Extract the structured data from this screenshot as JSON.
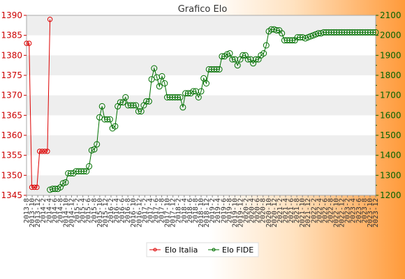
{
  "colors": {
    "italia": "#dd0000",
    "fide": "#007000",
    "band": "#eeeeee",
    "plot_bg": "#ffffff",
    "frame": "#aaaaaa",
    "title": "#333333",
    "left_ticks": "#cc0000",
    "right_ticks": "#006400"
  },
  "chart_data": {
    "type": "line",
    "title": "Grafico Elo",
    "grid": true,
    "legend_position": "bottom",
    "left_axis": {
      "series": "Elo Italia",
      "range": [
        1345,
        1390
      ],
      "ticks": [
        1345,
        1350,
        1355,
        1360,
        1365,
        1370,
        1375,
        1380,
        1385,
        1390
      ]
    },
    "right_axis": {
      "series": "Elo FIDE",
      "range": [
        1200,
        2100
      ],
      "ticks": [
        1200,
        1300,
        1400,
        1500,
        1600,
        1700,
        1800,
        1900,
        2000,
        2100
      ]
    },
    "x_tick_labels": [
      "2013-8",
      "2013-10",
      "2013-12",
      "2014-2",
      "2014-4",
      "2014-6",
      "2014-8",
      "2014-10",
      "2014-12",
      "2015-2",
      "2015-4",
      "2015-6",
      "2015-8",
      "2015-10",
      "2015-12",
      "2016-2",
      "2016-4",
      "2016-6",
      "2016-8",
      "2016-10",
      "2016-12",
      "2017-2",
      "2017-4",
      "2017-6",
      "2017-8",
      "2017-10",
      "2017-12",
      "2018-2",
      "2018-4",
      "2018-6",
      "2018-8",
      "2018-10",
      "2018-12",
      "2019-2",
      "2019-4",
      "2019-6",
      "2019-8",
      "2019-10",
      "2019-12",
      "2020-2",
      "2020-4",
      "2020-6",
      "2020-8",
      "2020-10",
      "2020-12",
      "2021-2",
      "2021-4",
      "2021-6",
      "2021-8",
      "2021-10",
      "2021-12",
      "2022-2",
      "2022-4",
      "2022-6",
      "2022-8",
      "2022-10",
      "2022-12",
      "2023-2",
      "2023-4",
      "2023-6",
      "2023-8",
      "2023-10",
      "2023-12"
    ],
    "series": [
      {
        "name": "Elo Italia",
        "axis": "left",
        "x": [
          0,
          1,
          2,
          3,
          4,
          5,
          6,
          7,
          8,
          9,
          10
        ],
        "values": [
          1383,
          1383,
          1347,
          1347,
          1347,
          1356,
          1356,
          1356,
          1356,
          1389,
          null
        ]
      },
      {
        "name": "Elo FIDE",
        "axis": "right",
        "x": [
          9,
          10,
          11,
          12,
          13,
          14,
          15,
          16,
          17,
          18,
          19,
          20,
          21,
          22,
          23,
          24,
          25,
          26,
          27,
          28,
          29,
          30,
          31,
          32,
          33,
          34,
          35,
          36,
          37,
          38,
          39,
          40,
          41,
          42,
          43,
          44,
          45,
          46,
          47,
          48,
          49,
          50,
          51,
          52,
          53,
          54,
          55,
          56,
          57,
          58,
          59,
          60,
          61,
          62,
          63,
          64,
          65,
          66,
          67,
          68,
          69,
          70,
          71,
          72,
          73,
          74,
          75,
          76,
          77,
          78,
          79,
          80,
          81,
          82,
          83,
          84,
          85,
          86,
          87,
          88,
          89,
          90,
          91,
          92,
          93,
          94,
          95,
          96,
          97,
          98,
          99,
          100,
          101,
          102,
          103,
          104,
          105,
          106,
          107,
          108,
          109,
          110,
          111,
          112,
          113,
          114,
          115,
          116,
          117,
          118,
          119,
          120,
          121,
          122,
          123,
          124,
          125,
          126,
          127,
          128,
          129,
          130,
          131,
          132,
          133,
          134
        ],
        "values": [
          1228,
          1232,
          1232,
          1232,
          1240,
          1260,
          1265,
          1310,
          1310,
          1310,
          1320,
          1320,
          1320,
          1320,
          1320,
          1345,
          1425,
          1430,
          1455,
          1590,
          1645,
          1580,
          1580,
          1580,
          1535,
          1545,
          1645,
          1665,
          1665,
          1690,
          1650,
          1650,
          1650,
          1650,
          1620,
          1620,
          1650,
          1670,
          1670,
          1780,
          1835,
          1790,
          1745,
          1795,
          1760,
          1690,
          1690,
          1690,
          1690,
          1690,
          1690,
          1640,
          1710,
          1710,
          1710,
          1720,
          1720,
          1690,
          1720,
          1785,
          1760,
          1830,
          1830,
          1830,
          1830,
          1830,
          1895,
          1895,
          1905,
          1910,
          1880,
          1880,
          1850,
          1880,
          1900,
          1900,
          1880,
          1880,
          1860,
          1880,
          1880,
          1900,
          1910,
          1950,
          2020,
          2030,
          2030,
          2025,
          2025,
          2010,
          1975,
          1975,
          1975,
          1975,
          1975,
          1990,
          1990,
          1990,
          1985,
          1990,
          1995,
          2000,
          2005,
          2010,
          2010,
          2015,
          2015,
          2015,
          2015,
          2015,
          2015,
          2015,
          2015,
          2015,
          2015,
          2015,
          2015,
          2015,
          2015,
          2015,
          2015,
          2015,
          2015,
          2015,
          2015,
          2015
        ]
      }
    ]
  }
}
